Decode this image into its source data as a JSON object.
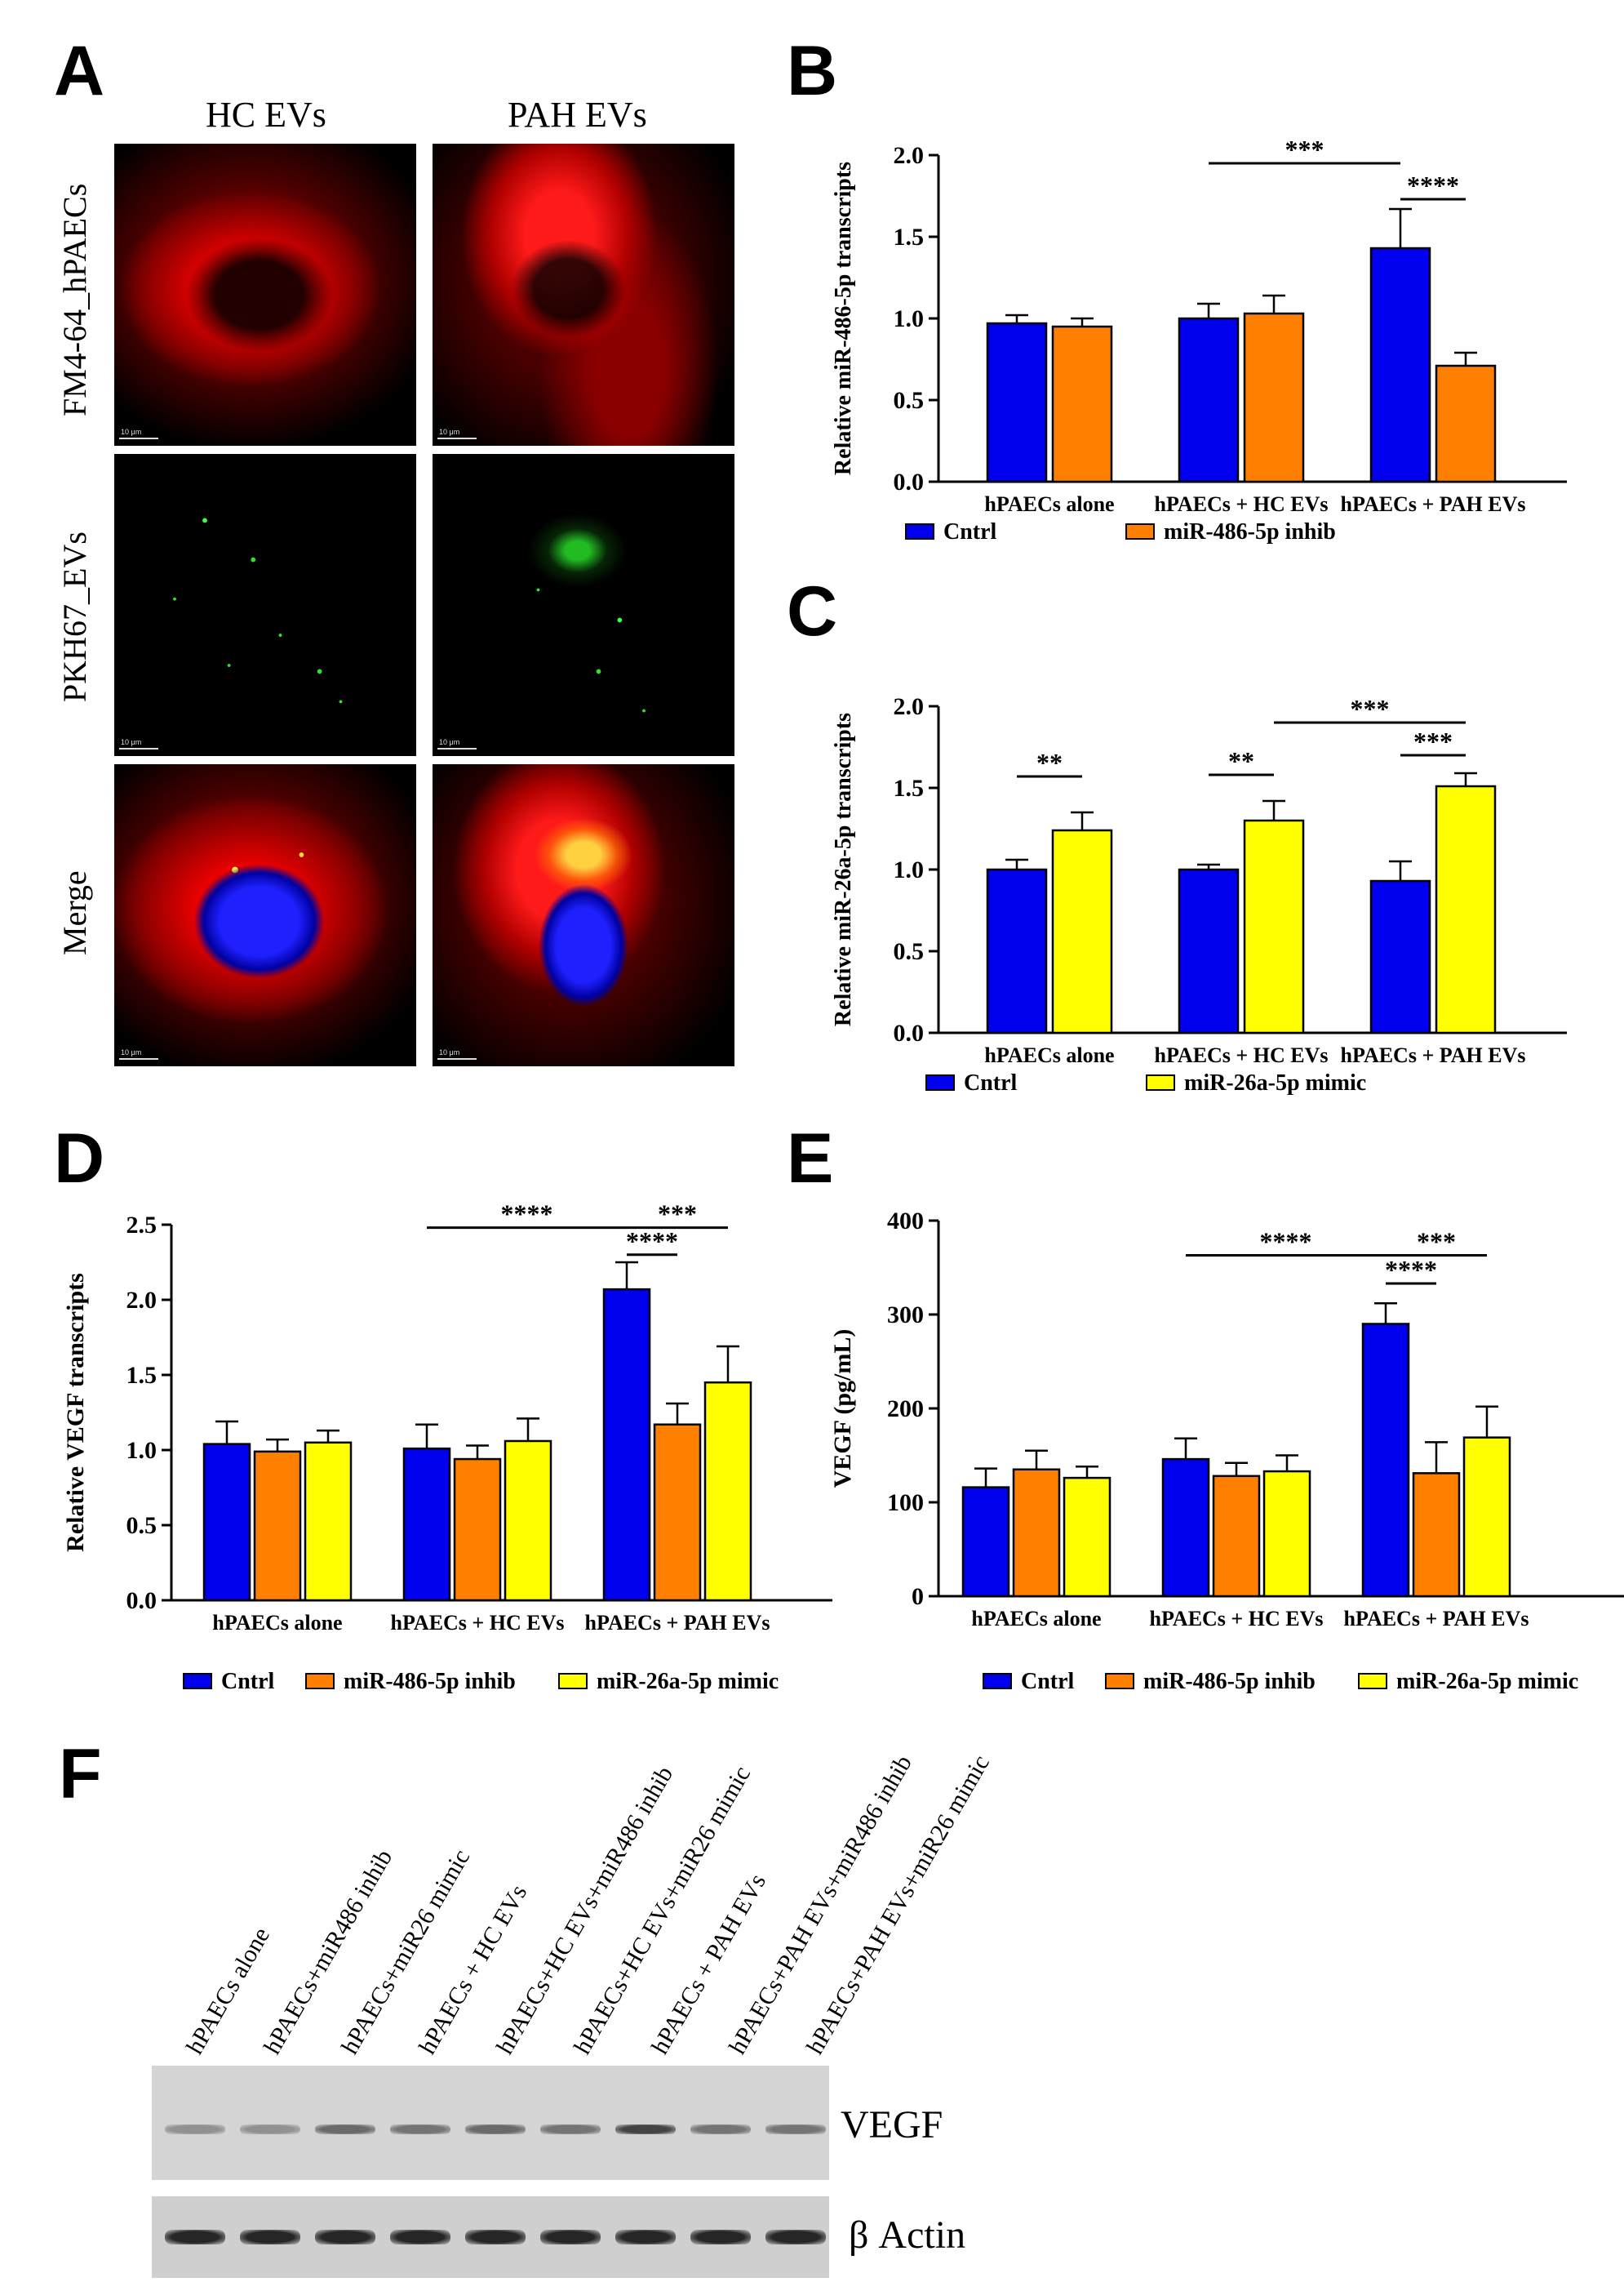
{
  "panels": {
    "A": {
      "letter": "A",
      "columns": [
        "HC EVs",
        "PAH EVs"
      ],
      "rows": [
        "FM4-64_hPAECs",
        "PKH67_EVs",
        "Merge"
      ],
      "scalebar": "10 μm"
    },
    "B": {
      "letter": "B"
    },
    "C": {
      "letter": "C"
    },
    "D": {
      "letter": "D"
    },
    "E": {
      "letter": "E"
    },
    "F": {
      "letter": "F",
      "lanes": [
        "hPAECs alone",
        "hPAECs+miR486 inhib",
        "hPAECs+miR26 mimic",
        "hPAECs + HC EVs",
        "hPAECs+HC EVs+miR486 inhib",
        "hPAECs+HC EVs+miR26 mimic",
        "hPAECs + PAH EVs",
        "hPAECs+PAH EVs+miR486 inhib",
        "hPAECs+PAH EVs+miR26 mimic"
      ],
      "blots": [
        {
          "name": "VEGF",
          "intensities": [
            0.35,
            0.35,
            0.55,
            0.5,
            0.55,
            0.5,
            0.75,
            0.5,
            0.5
          ]
        },
        {
          "name": "β Actin",
          "intensities": [
            0.9,
            0.9,
            0.9,
            0.9,
            0.9,
            0.9,
            0.9,
            0.9,
            0.9
          ]
        }
      ]
    }
  },
  "colors": {
    "cntrl": "#0000ee",
    "inhib": "#ff7f00",
    "mimic": "#ffff00"
  },
  "chart_data": [
    {
      "id": "B",
      "type": "bar",
      "ylabel": "Relative miR-486-5p transcripts",
      "ylim": [
        0,
        2.0
      ],
      "yticks": [
        0.0,
        0.5,
        1.0,
        1.5,
        2.0
      ],
      "tick_labels": [
        "0.0",
        "0.5",
        "1.0",
        "1.5",
        "2.0"
      ],
      "categories": [
        "hPAECs alone",
        "hPAECs + HC EVs",
        "hPAECs + PAH EVs"
      ],
      "series": [
        {
          "name": "Cntrl",
          "color": "#0000ee",
          "values": [
            0.97,
            1.0,
            1.43
          ],
          "errors": [
            0.05,
            0.09,
            0.24
          ]
        },
        {
          "name": "miR-486-5p inhib",
          "color": "#ff7f00",
          "values": [
            0.95,
            1.03,
            0.71
          ],
          "errors": [
            0.05,
            0.11,
            0.08
          ]
        }
      ],
      "significance": [
        {
          "label": "***",
          "from": [
            1,
            0
          ],
          "to": [
            2,
            0
          ],
          "y": 1.95
        },
        {
          "label": "****",
          "from": [
            2,
            0
          ],
          "to": [
            2,
            1
          ],
          "y": 1.73
        }
      ]
    },
    {
      "id": "C",
      "type": "bar",
      "ylabel": "Relative miR-26a-5p transcripts",
      "ylim": [
        0,
        2.0
      ],
      "yticks": [
        0.0,
        0.5,
        1.0,
        1.5,
        2.0
      ],
      "tick_labels": [
        "0.0",
        "0.5",
        "1.0",
        "1.5",
        "2.0"
      ],
      "categories": [
        "hPAECs alone",
        "hPAECs + HC EVs",
        "hPAECs + PAH EVs"
      ],
      "series": [
        {
          "name": "Cntrl",
          "color": "#0000ee",
          "values": [
            1.0,
            1.0,
            0.93
          ],
          "errors": [
            0.06,
            0.03,
            0.12
          ]
        },
        {
          "name": "miR-26a-5p mimic",
          "color": "#ffff00",
          "values": [
            1.24,
            1.3,
            1.51
          ],
          "errors": [
            0.11,
            0.12,
            0.08
          ]
        }
      ],
      "significance": [
        {
          "label": "**",
          "from": [
            0,
            0
          ],
          "to": [
            0,
            1
          ],
          "y": 1.57
        },
        {
          "label": "**",
          "from": [
            1,
            0
          ],
          "to": [
            1,
            1
          ],
          "y": 1.58
        },
        {
          "label": "***",
          "from": [
            1,
            1
          ],
          "to": [
            2,
            1
          ],
          "y": 1.9
        },
        {
          "label": "***",
          "from": [
            2,
            0
          ],
          "to": [
            2,
            1
          ],
          "y": 1.7
        }
      ]
    },
    {
      "id": "D",
      "type": "bar",
      "ylabel": "Relative VEGF transcripts",
      "ylim": [
        0,
        2.5
      ],
      "yticks": [
        0.0,
        0.5,
        1.0,
        1.5,
        2.0,
        2.5
      ],
      "tick_labels": [
        "0.0",
        "0.5",
        "1.0",
        "1.5",
        "2.0",
        "2.5"
      ],
      "categories": [
        "hPAECs alone",
        "hPAECs + HC EVs",
        "hPAECs + PAH EVs"
      ],
      "series": [
        {
          "name": "Cntrl",
          "color": "#0000ee",
          "values": [
            1.04,
            1.01,
            2.07
          ],
          "errors": [
            0.15,
            0.16,
            0.18
          ]
        },
        {
          "name": "miR-486-5p inhib",
          "color": "#ff7f00",
          "values": [
            0.99,
            0.94,
            1.17
          ],
          "errors": [
            0.08,
            0.09,
            0.14
          ]
        },
        {
          "name": "miR-26a-5p mimic",
          "color": "#ffff00",
          "values": [
            1.05,
            1.06,
            1.45
          ],
          "errors": [
            0.08,
            0.15,
            0.24
          ]
        }
      ],
      "significance": [
        {
          "label": "****",
          "from": [
            1,
            0
          ],
          "to": [
            2,
            0
          ],
          "y": 2.48
        },
        {
          "label": "***",
          "from": [
            2,
            0
          ],
          "to": [
            2,
            2
          ],
          "y": 2.48
        },
        {
          "label": "****",
          "from": [
            2,
            0
          ],
          "to": [
            2,
            1
          ],
          "y": 2.3
        }
      ]
    },
    {
      "id": "E",
      "type": "bar",
      "ylabel": "VEGF (pg/mL)",
      "ylim": [
        0,
        400
      ],
      "yticks": [
        0,
        100,
        200,
        300,
        400
      ],
      "tick_labels": [
        "0",
        "100",
        "200",
        "300",
        "400"
      ],
      "categories": [
        "hPAECs alone",
        "hPAECs + HC EVs",
        "hPAECs + PAH EVs"
      ],
      "series": [
        {
          "name": "Cntrl",
          "color": "#0000ee",
          "values": [
            116,
            146,
            290
          ],
          "errors": [
            20,
            22,
            22
          ]
        },
        {
          "name": "miR-486-5p inhib",
          "color": "#ff7f00",
          "values": [
            135,
            128,
            131
          ],
          "errors": [
            20,
            14,
            33
          ]
        },
        {
          "name": "miR-26a-5p mimic",
          "color": "#ffff00",
          "values": [
            126,
            133,
            169
          ],
          "errors": [
            12,
            17,
            33
          ]
        }
      ],
      "significance": [
        {
          "label": "****",
          "from": [
            1,
            0
          ],
          "to": [
            2,
            0
          ],
          "y": 363
        },
        {
          "label": "***",
          "from": [
            2,
            0
          ],
          "to": [
            2,
            2
          ],
          "y": 363
        },
        {
          "label": "****",
          "from": [
            2,
            0
          ],
          "to": [
            2,
            1
          ],
          "y": 333
        }
      ]
    }
  ]
}
